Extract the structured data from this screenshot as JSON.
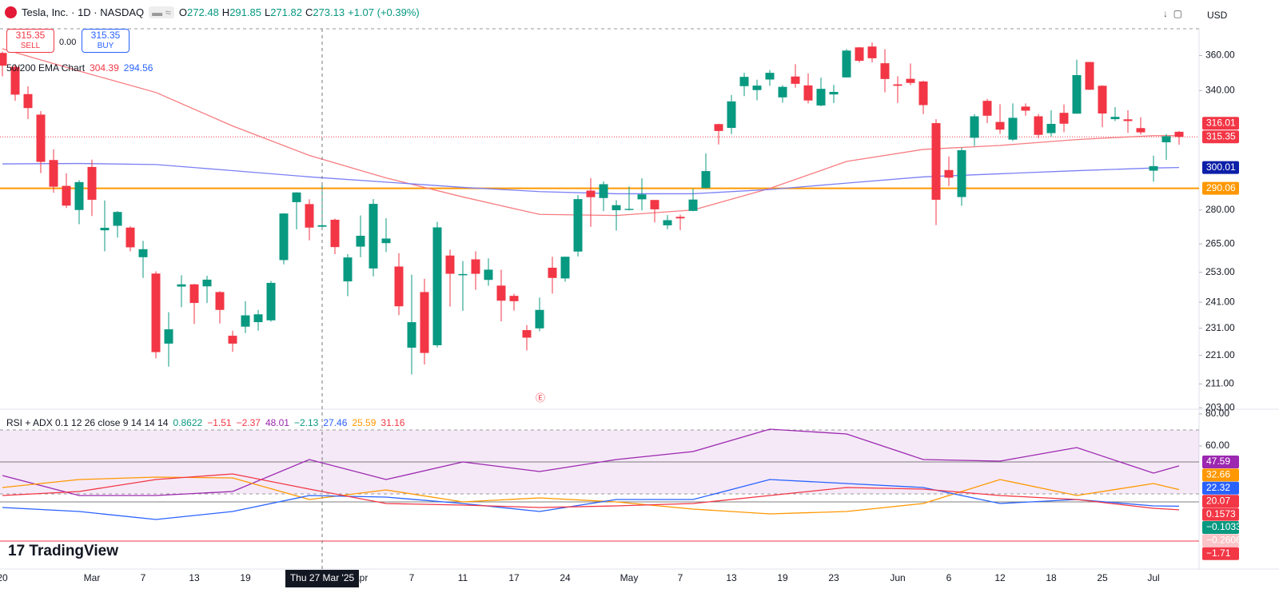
{
  "header": {
    "title": "Tesla, Inc. · 1D · NASDAQ",
    "legend": [
      {
        "key": "O",
        "value": "272.48"
      },
      {
        "key": "H",
        "value": "291.85"
      },
      {
        "key": "L",
        "value": "271.82"
      },
      {
        "key": "C",
        "value": "273.13"
      }
    ],
    "change": "+1.07 (+0.39%)",
    "currency": "USD"
  },
  "trade": {
    "sell_price": "315.35",
    "sell": "SELL",
    "spread": "0.00",
    "buy_price": "315.35",
    "buy": "BUY"
  },
  "brand": "TradingView",
  "crosshair_label": "Thu 27 Mar '25",
  "chart_data": [
    {
      "type": "candlestick",
      "log": true,
      "grid": false,
      "up_color": "#089981",
      "down_color": "#f23645",
      "categories": [
        "20",
        null,
        null,
        null,
        null,
        null,
        null,
        "Mar",
        null,
        null,
        null,
        "7",
        null,
        null,
        null,
        "13",
        null,
        null,
        null,
        "19",
        null,
        null,
        null,
        null,
        null,
        null,
        null,
        null,
        "Apr",
        null,
        null,
        null,
        "7",
        null,
        null,
        null,
        "11",
        null,
        null,
        null,
        "17",
        null,
        null,
        null,
        "24",
        null,
        null,
        null,
        null,
        "May",
        null,
        null,
        null,
        "7",
        null,
        null,
        null,
        "13",
        null,
        null,
        null,
        "19",
        null,
        null,
        null,
        "23",
        null,
        null,
        null,
        null,
        "Jun",
        null,
        null,
        null,
        "6",
        null,
        null,
        null,
        "12",
        null,
        null,
        null,
        "18",
        null,
        null,
        null,
        "25",
        null,
        null,
        null,
        "Jul",
        null,
        null
      ],
      "open": [
        361.5,
        353.4,
        338.1,
        327,
        303.7,
        291.2,
        280,
        300.3,
        270.9,
        272.9,
        272.1,
        259.3,
        252.5,
        225.3,
        247.2,
        248.1,
        247.3,
        245,
        228.2,
        231.6,
        233.3,
        234,
        258.1,
        283.6,
        282.7,
        272.48,
        275.6,
        249.3,
        263.8,
        254.6,
        265.3,
        255.4,
        223.8,
        245,
        224.7,
        260,
        251.8,
        258.4,
        249.9,
        247.6,
        243.5,
        230.3,
        230.96,
        254.9,
        250.5,
        261.7,
        288.98,
        285.5,
        279.9,
        280,
        284.9,
        284.6,
        273.1,
        276.9,
        279.6,
        290.2,
        321.99,
        320,
        342.5,
        340.3,
        346.2,
        336.3,
        347.9,
        342.9,
        331.9,
        337.9,
        347.4,
        364.8,
        365.3,
        355.5,
        343.5,
        346.6,
        345.1,
        322.5,
        298.8,
        285.96,
        314.9,
        334.4,
        323.1,
        313.97,
        331.3,
        326.1,
        317.3,
        327.95,
        327.5,
        356.2,
        342.7,
        324.6,
        324.5,
        319.9,
        298.5,
        312.6,
        317.99
      ],
      "high": [
        362.3,
        354.9,
        342.4,
        328.9,
        309,
        297.2,
        293.9,
        303.9,
        284.4,
        279.5,
        272.7,
        266.3,
        253.4,
        237.1,
        251.8,
        248.3,
        251.6,
        245.4,
        230.1,
        241.4,
        238,
        249.5,
        278.6,
        288.2,
        284.9,
        291.85,
        276.1,
        260.6,
        277.5,
        284.99,
        276.3,
        261,
        252,
        250.4,
        274.7,
        262.5,
        257.7,
        261.8,
        258.8,
        254.1,
        244.3,
        232.2,
        242.8,
        259.5,
        259.5,
        286.9,
        294.9,
        293.3,
        284.5,
        290.9,
        294.8,
        284.6,
        277.7,
        277.9,
        289.8,
        307,
        322.2,
        337.6,
        350,
        346.1,
        351.6,
        343,
        354.99,
        349.7,
        347.3,
        343.2,
        363.8,
        365,
        367.7,
        363.7,
        348,
        355.4,
        345.6,
        324.6,
        305.5,
        309.8,
        327.3,
        335.5,
        332.6,
        332.99,
        332.99,
        327.3,
        329.3,
        332.4,
        357.5,
        356.3,
        343,
        331,
        329.3,
        325.6,
        305.9,
        316.8,
        318.4
      ],
      "low": [
        348,
        334.4,
        324.7,
        297.3,
        288,
        280.9,
        273.6,
        277.3,
        261.8,
        267.7,
        261.8,
        250.7,
        220,
        217,
        239.1,
        232.6,
        240.7,
        232.8,
        222.3,
        229.2,
        230.1,
        233.5,
        256.3,
        271.3,
        266.5,
        271.82,
        260.6,
        243.4,
        259.3,
        251.3,
        261.5,
        236,
        214.3,
        217.8,
        223.9,
        239.3,
        237.6,
        245.9,
        247.5,
        233.6,
        237.7,
        222.8,
        229.9,
        244.4,
        249.2,
        259.6,
        272.4,
        279.5,
        270.8,
        279.8,
        279.8,
        274.4,
        271.4,
        271,
        279.4,
        290,
        311.5,
        316.8,
        337,
        334.7,
        342.7,
        333.4,
        341.6,
        333,
        331.4,
        333.2,
        347.3,
        355.9,
        356,
        339.1,
        333.3,
        343,
        327.3,
        273.2,
        291.1,
        281.9,
        310.7,
        322.5,
        316.9,
        313.3,
        326.4,
        314.7,
        315.5,
        317.8,
        327.5,
        340.4,
        320.4,
        323.6,
        317.5,
        316.6,
        293.2,
        303.8,
        311.4
      ],
      "close": [
        354.1,
        337.8,
        330.5,
        302.8,
        290.8,
        282,
        293,
        284.7,
        272,
        279.1,
        263.5,
        262.7,
        222.2,
        230.6,
        248.1,
        240.7,
        250,
        238,
        225.3,
        235.9,
        236.3,
        248.7,
        278.4,
        288.1,
        272.1,
        273.13,
        263.6,
        259.2,
        268.5,
        282.8,
        267.3,
        239.4,
        233.3,
        221.9,
        272.2,
        252.4,
        252.3,
        252.4,
        254.1,
        241.6,
        241.4,
        227.5,
        238,
        250.7,
        259.5,
        285,
        285.9,
        292,
        282.2,
        280.5,
        287.2,
        280.3,
        275.4,
        276.2,
        284.8,
        298.3,
        318.4,
        334.1,
        347.7,
        342.8,
        350,
        342.1,
        343.8,
        334.6,
        341,
        339.3,
        362.9,
        356.9,
        358.4,
        346.5,
        342.7,
        344.3,
        332.1,
        284.7,
        295.1,
        308.6,
        326.1,
        326.4,
        319.1,
        325.3,
        329.1,
        316.4,
        322.1,
        322.2,
        348.7,
        340.5,
        327.6,
        325.8,
        323.6,
        317.7,
        300.7,
        315.7,
        315.35
      ],
      "ylim": [
        202.5,
        376
      ],
      "yticks": [
        {
          "value": 360,
          "label": "360.00"
        },
        {
          "value": 340,
          "label": "340.00"
        },
        {
          "value": 280,
          "label": "280.00"
        },
        {
          "value": 265,
          "label": "265.00"
        },
        {
          "value": 253,
          "label": "253.00"
        },
        {
          "value": 241,
          "label": "241.00"
        },
        {
          "value": 231,
          "label": "231.00"
        },
        {
          "value": 221,
          "label": "221.00"
        },
        {
          "value": 211,
          "label": "211.00"
        },
        {
          "value": 203,
          "label": "203.00"
        }
      ],
      "indicator_title": "50/200 EMA Chart",
      "series": [
        {
          "color": "#f77c80",
          "legend_color": "#f23645",
          "legend_value": 304.39,
          "x": [
            0,
            6,
            12,
            18,
            24,
            30,
            36,
            42,
            48,
            54,
            60,
            66,
            72,
            78,
            84,
            90,
            92
          ],
          "values": [
            364,
            351,
            339,
            321,
            306,
            295,
            286,
            278,
            277.5,
            280,
            290,
            303,
            309,
            311,
            314,
            316,
            316.01
          ]
        },
        {
          "color": "#7b7ff5",
          "legend_color": "#2962ff",
          "legend_value": 294.56,
          "x": [
            0,
            6,
            12,
            18,
            24,
            30,
            36,
            42,
            48,
            54,
            60,
            66,
            72,
            78,
            84,
            90,
            92
          ],
          "values": [
            301.8,
            302,
            301.5,
            298.5,
            295.5,
            293,
            290.5,
            288.5,
            287.5,
            287.5,
            289.5,
            292.5,
            295.5,
            297,
            298.5,
            299.8,
            300.01
          ]
        }
      ],
      "levels": [
        {
          "value": 290.06,
          "color": "#ff9800"
        }
      ],
      "last_price": {
        "value": 315.35,
        "color": "#f23645"
      },
      "price_labels": [
        {
          "value": 315.35,
          "color": "#f23645"
        },
        {
          "value": 316.01,
          "color": "#f23645"
        },
        {
          "value": 300.01,
          "color": "#0c1fa8"
        },
        {
          "value": 290.06,
          "color": "#ff9800"
        }
      ]
    },
    {
      "type": "line",
      "title": "RSI + ADX 0.1 12 26 close 9 14 14 14",
      "legend_values": [
        {
          "text": "0.8622",
          "color": "#089981"
        },
        {
          "text": "−1.51",
          "color": "#f23645"
        },
        {
          "text": "−2.37",
          "color": "#f23645"
        },
        {
          "text": "48.01",
          "color": "#9c27b0"
        },
        {
          "text": "−2.13",
          "color": "#089981"
        },
        {
          "text": "27.46",
          "color": "#2962ff"
        },
        {
          "text": "25.59",
          "color": "#ff9800"
        },
        {
          "text": "31.16",
          "color": "#f23645"
        }
      ],
      "ylim": [
        -11,
        83
      ],
      "yticks": [
        {
          "value": 80,
          "label": "80.00"
        },
        {
          "value": 60,
          "label": "60.00"
        }
      ],
      "band": [
        30,
        70
      ],
      "levels": [
        50,
        25
      ],
      "series": [
        {
          "color": "#9c27b0",
          "x": [
            0,
            6,
            12,
            18,
            24,
            30,
            36,
            42,
            48,
            54,
            60,
            66,
            72,
            78,
            84,
            90,
            92
          ],
          "values": [
            41.5,
            29,
            29,
            31.5,
            51.5,
            39,
            50,
            44,
            51.5,
            56.5,
            70.5,
            67.5,
            51.5,
            50.5,
            59,
            43,
            47.59
          ]
        },
        {
          "color": "#ff9800",
          "x": [
            0,
            6,
            12,
            18,
            24,
            30,
            36,
            42,
            48,
            54,
            60,
            66,
            72,
            78,
            84,
            90,
            92
          ],
          "values": [
            34,
            39,
            40.5,
            40,
            26.5,
            32.5,
            25,
            27.5,
            25,
            20.5,
            17.5,
            19,
            24,
            39,
            29,
            36.5,
            32.66
          ]
        },
        {
          "color": "#2962ff",
          "x": [
            0,
            6,
            12,
            18,
            24,
            30,
            36,
            42,
            48,
            54,
            60,
            66,
            72,
            78,
            84,
            90,
            92
          ],
          "values": [
            21.5,
            19,
            14,
            19,
            29,
            28,
            24,
            19,
            26.5,
            26.5,
            39,
            36.5,
            34,
            24,
            26.5,
            22.5,
            22.32
          ]
        },
        {
          "color": "#f23645",
          "x": [
            0,
            6,
            12,
            18,
            24,
            30,
            36,
            42,
            48,
            54,
            60,
            66,
            72,
            78,
            84,
            90,
            92
          ],
          "values": [
            29,
            31.5,
            39,
            42.5,
            33,
            24,
            23,
            21.5,
            22.5,
            24,
            29,
            34,
            33,
            29,
            26.5,
            21,
            20.07
          ]
        }
      ],
      "price_labels": [
        {
          "text": "47.59",
          "color": "#9c27b0"
        },
        {
          "text": "32.66",
          "color": "#ff9800"
        },
        {
          "text": "22.32",
          "color": "#2962ff"
        },
        {
          "text": "20.07",
          "color": "#f23645"
        },
        {
          "text": "0.1573",
          "color": "#f23645"
        },
        {
          "text": "−0.1033",
          "color": "#089981"
        },
        {
          "text": "−0.2606",
          "color": "#fbc4c8"
        },
        {
          "text": "−1.71",
          "color": "#f23645"
        }
      ]
    }
  ]
}
